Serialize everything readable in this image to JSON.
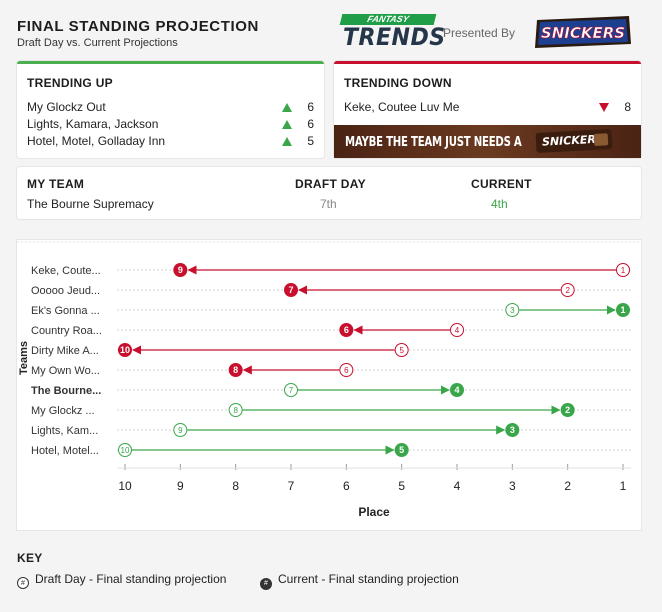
{
  "header": {
    "title": "FINAL STANDING PROJECTION",
    "subtitle": "Draft Day vs. Current Projections",
    "logo_fantasy": "FANTASY",
    "logo_trends": "TRENDS",
    "presented_by": "Presented By",
    "sponsor": "SNICKERS"
  },
  "trending_up": {
    "title": "TRENDING UP",
    "items": [
      {
        "name": "My Glockz Out",
        "value": "6"
      },
      {
        "name": "Lights, Kamara, Jackson",
        "value": "6"
      },
      {
        "name": "Hotel, Motel, Golladay Inn",
        "value": "5"
      }
    ]
  },
  "trending_down": {
    "title": "TRENDING DOWN",
    "items": [
      {
        "name": "Keke, Coutee Luv Me",
        "value": "8"
      }
    ],
    "banner_text": "MAYBE THE TEAM JUST NEEDS A",
    "banner_bar": "SNICKERS"
  },
  "my_team": {
    "col_team": "MY TEAM",
    "col_draft": "DRAFT DAY",
    "col_current": "CURRENT",
    "team_name": "The Bourne Supremacy",
    "draft": "7th",
    "current": "4th"
  },
  "colors": {
    "up": "#3aa64a",
    "down": "#c8102e"
  },
  "chart_data": {
    "type": "dumbbell",
    "xlabel": "Place",
    "ylabel": "Teams",
    "x_ticks": [
      "10",
      "9",
      "8",
      "7",
      "6",
      "5",
      "4",
      "3",
      "2",
      "1"
    ],
    "xlim": [
      10,
      1
    ],
    "rows": [
      {
        "team": "Keke, Coute...",
        "draft": 1,
        "current": 9
      },
      {
        "team": "Ooooo Jeud...",
        "draft": 2,
        "current": 7
      },
      {
        "team": "Ek's Gonna ...",
        "draft": 3,
        "current": 1
      },
      {
        "team": "Country Roa...",
        "draft": 4,
        "current": 6
      },
      {
        "team": "Dirty Mike A...",
        "draft": 5,
        "current": 10
      },
      {
        "team": "My Own Wo...",
        "draft": 6,
        "current": 8
      },
      {
        "team": "The Bourne...",
        "draft": 7,
        "current": 4,
        "highlight": true
      },
      {
        "team": "My Glockz ...",
        "draft": 8,
        "current": 2
      },
      {
        "team": "Lights, Kam...",
        "draft": 9,
        "current": 3
      },
      {
        "team": "Hotel, Motel...",
        "draft": 10,
        "current": 5
      }
    ]
  },
  "key": {
    "title": "KEY",
    "draft_symbol": "#",
    "current_symbol": "#",
    "draft_label": "Draft Day - Final standing projection",
    "current_label": "Current - Final standing projection"
  }
}
